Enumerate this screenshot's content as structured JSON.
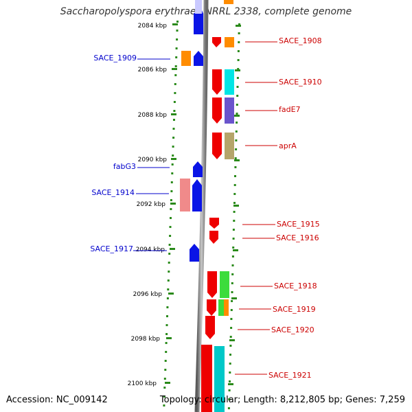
{
  "title": "Saccharopolyspora erythraea NRRL 2338, complete genome",
  "footer": {
    "accession": "Accession: NC_009142",
    "summary": "Topology: circular; Length: 8,212,805 bp; Genes: 7,259"
  },
  "ticks": [
    "2084 kbp",
    "2086 kbp",
    "2088 kbp",
    "2090 kbp",
    "2092 kbp",
    "2094 kbp",
    "2096 kbp",
    "2098 kbp",
    "2100 kbp"
  ],
  "left_labels": [
    "SACE_1909",
    "fabG3",
    "SACE_1914",
    "SACE_1917"
  ],
  "right_labels": [
    "SACE_1908",
    "SACE_1910",
    "fadE7",
    "aprA",
    "SACE_1915",
    "SACE_1916",
    "SACE_1918",
    "SACE_1919",
    "SACE_1920",
    "SACE_1921"
  ],
  "colors": {
    "left_label": "#0000cc",
    "right_label": "#cc0000",
    "tick_green": "#2a8a1a",
    "backbone": "#888888"
  }
}
